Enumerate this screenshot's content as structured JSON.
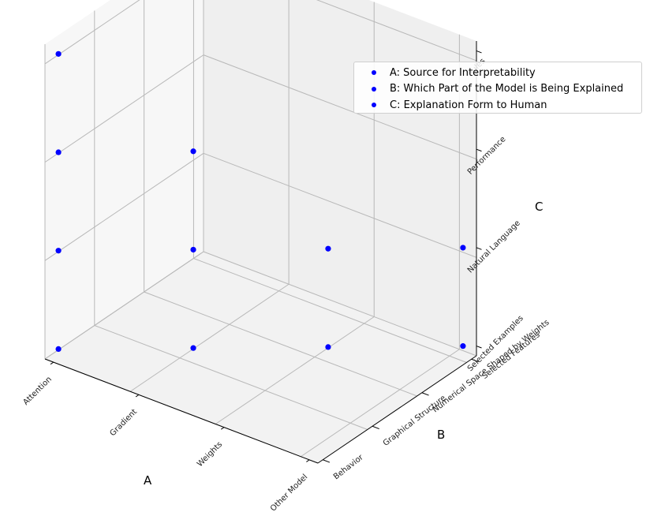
{
  "chart_data": {
    "type": "scatter",
    "projection": "3d",
    "marker_color": "#0000ff",
    "grid": true,
    "legend_placement": "upper right",
    "x_axis": {
      "label": "A",
      "categories": [
        "Attention",
        "Gradient",
        "Weights",
        "Other Model"
      ]
    },
    "y_axis": {
      "label": "B",
      "categories": [
        "Behavior",
        "Graphical Structure",
        "Numerical Space Shaped by Weights",
        "Selected Features"
      ]
    },
    "z_axis": {
      "label": "C",
      "categories": [
        "Selected Examples",
        "Natural Language",
        "Performance",
        "Rules"
      ]
    },
    "points": [
      {
        "a": "Attention",
        "b": "Behavior",
        "c": "Selected Examples"
      },
      {
        "a": "Attention",
        "b": "Behavior",
        "c": "Natural Language"
      },
      {
        "a": "Attention",
        "b": "Behavior",
        "c": "Performance"
      },
      {
        "a": "Attention",
        "b": "Behavior",
        "c": "Rules"
      },
      {
        "a": "Gradient",
        "b": "Graphical Structure",
        "c": "Selected Examples"
      },
      {
        "a": "Gradient",
        "b": "Graphical Structure",
        "c": "Natural Language"
      },
      {
        "a": "Gradient",
        "b": "Graphical Structure",
        "c": "Performance"
      },
      {
        "a": "Weights",
        "b": "Numerical Space Shaped by Weights",
        "c": "Selected Examples"
      },
      {
        "a": "Weights",
        "b": "Numerical Space Shaped by Weights",
        "c": "Natural Language"
      },
      {
        "a": "Other Model",
        "b": "Selected Features",
        "c": "Selected Examples"
      },
      {
        "a": "Other Model",
        "b": "Selected Features",
        "c": "Natural Language"
      }
    ],
    "legend": [
      "A: Source for Interpretability",
      "B: Which Part of the Model is Being Explained",
      "C: Explanation Form to Human"
    ]
  }
}
